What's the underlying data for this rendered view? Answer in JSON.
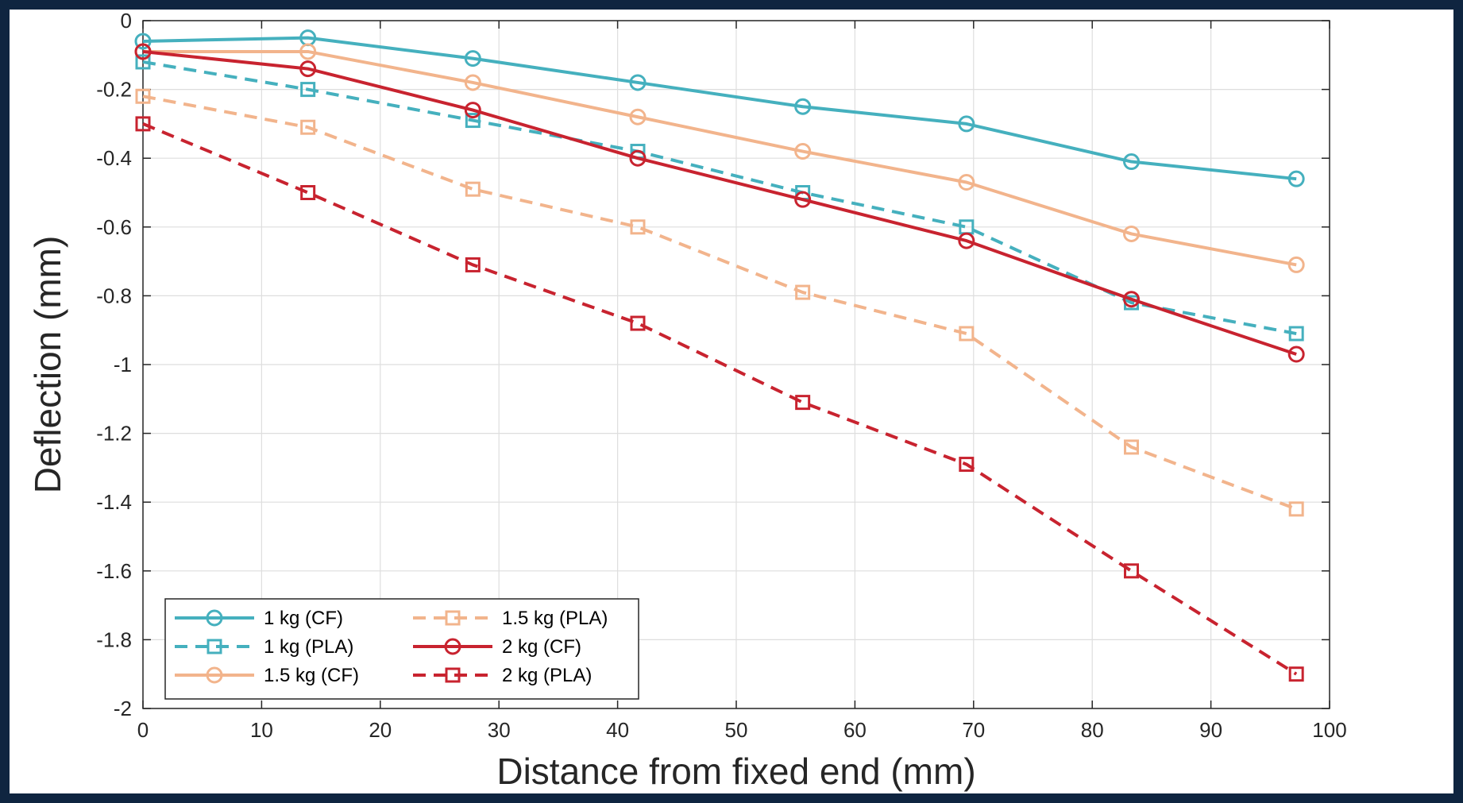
{
  "chart_data": {
    "type": "line",
    "title": "",
    "xlabel": "Distance from fixed end (mm)",
    "ylabel": "Deflection (mm)",
    "xlim": [
      0,
      100
    ],
    "ylim": [
      -2,
      0
    ],
    "x_ticks": [
      0,
      10,
      20,
      30,
      40,
      50,
      60,
      70,
      80,
      90,
      100
    ],
    "y_ticks": [
      0,
      -0.2,
      -0.4,
      -0.6,
      -0.8,
      -1,
      -1.2,
      -1.4,
      -1.6,
      -1.8,
      -2
    ],
    "grid": true,
    "legend_position": "bottom-left",
    "x": [
      0,
      13.9,
      27.8,
      41.7,
      55.6,
      69.4,
      83.3,
      97.2
    ],
    "series": [
      {
        "name": "1 kg (CF)",
        "color": "#45b0be",
        "line": "solid",
        "marker": "circle",
        "values": [
          -0.06,
          -0.05,
          -0.11,
          -0.18,
          -0.25,
          -0.3,
          -0.41,
          -0.46
        ]
      },
      {
        "name": "1 kg (PLA)",
        "color": "#45b0be",
        "line": "dashed",
        "marker": "square",
        "values": [
          -0.12,
          -0.2,
          -0.29,
          -0.38,
          -0.5,
          -0.6,
          -0.82,
          -0.91
        ]
      },
      {
        "name": "1.5 kg (CF)",
        "color": "#f2b48c",
        "line": "solid",
        "marker": "circle",
        "values": [
          -0.09,
          -0.09,
          -0.18,
          -0.28,
          -0.38,
          -0.47,
          -0.62,
          -0.71
        ]
      },
      {
        "name": "1.5 kg (PLA)",
        "color": "#f2b48c",
        "line": "dashed",
        "marker": "square",
        "values": [
          -0.22,
          -0.31,
          -0.49,
          -0.6,
          -0.79,
          -0.91,
          -1.24,
          -1.42
        ]
      },
      {
        "name": "2 kg (CF)",
        "color": "#c8232f",
        "line": "solid",
        "marker": "circle",
        "values": [
          -0.09,
          -0.14,
          -0.26,
          -0.4,
          -0.52,
          -0.64,
          -0.81,
          -0.97
        ]
      },
      {
        "name": "2 kg (PLA)",
        "color": "#c8232f",
        "line": "dashed",
        "marker": "square",
        "values": [
          -0.3,
          -0.5,
          -0.71,
          -0.88,
          -1.11,
          -1.29,
          -1.6,
          -1.9
        ]
      }
    ],
    "legend_order": [
      "1 kg (CF)",
      "1.5 kg (PLA)",
      "1 kg (PLA)",
      "2 kg (CF)",
      "1.5 kg (CF)",
      "2 kg (PLA)"
    ]
  }
}
